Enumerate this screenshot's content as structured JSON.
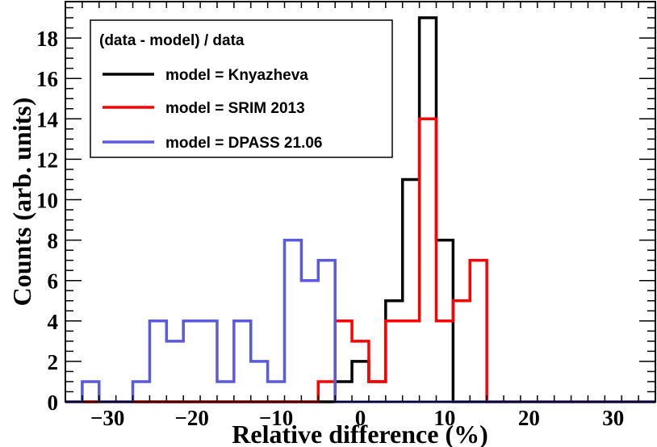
{
  "chart_data": {
    "type": "histogram",
    "title": "",
    "xlabel": "Relative difference (%)",
    "ylabel": "Counts (arb. units)",
    "xlim": [
      -35,
      35
    ],
    "ylim": [
      0,
      19.8
    ],
    "xticks": [
      -30,
      -20,
      -10,
      0,
      10,
      20,
      30
    ],
    "yticks": [
      0,
      2,
      4,
      6,
      8,
      10,
      12,
      14,
      16,
      18
    ],
    "bin_edges": [
      -35,
      -33,
      -31,
      -29,
      -27,
      -25,
      -23,
      -21,
      -19,
      -17,
      -15,
      -13,
      -11,
      -9,
      -7,
      -5,
      -3,
      -1,
      1,
      3,
      5,
      7,
      9,
      11,
      13,
      15,
      17,
      19,
      21,
      23,
      25,
      27,
      29,
      31,
      33,
      35
    ],
    "legend": {
      "header": "(data - model) / data",
      "location": "top-left"
    },
    "series": [
      {
        "name": "model = Knyazheva",
        "color": "#000000",
        "values": [
          0,
          0,
          0,
          0,
          0,
          0,
          0,
          0,
          0,
          0,
          0,
          0,
          0,
          0,
          0,
          0,
          1,
          2,
          1,
          5,
          11,
          19,
          8,
          0,
          0,
          0,
          0,
          0,
          0,
          0,
          0,
          0,
          0,
          0,
          0
        ]
      },
      {
        "name": "model = SRIM 2013",
        "color": "#ff0000",
        "values": [
          0,
          0,
          0,
          0,
          0,
          0,
          0,
          0,
          0,
          0,
          0,
          0,
          0,
          0,
          0,
          1,
          4,
          3,
          1,
          4,
          4,
          14,
          4,
          5,
          7,
          0,
          0,
          0,
          0,
          0,
          0,
          0,
          0,
          0,
          0
        ]
      },
      {
        "name": "model = DPASS 21.06",
        "color": "#5a5adc",
        "values": [
          0,
          1,
          0,
          0,
          1,
          4,
          3,
          4,
          4,
          1,
          4,
          2,
          1,
          8,
          6,
          7,
          0,
          0,
          0,
          0,
          0,
          0,
          0,
          0,
          0,
          0,
          0,
          0,
          0,
          0,
          0,
          0,
          0,
          0,
          0
        ]
      }
    ]
  }
}
